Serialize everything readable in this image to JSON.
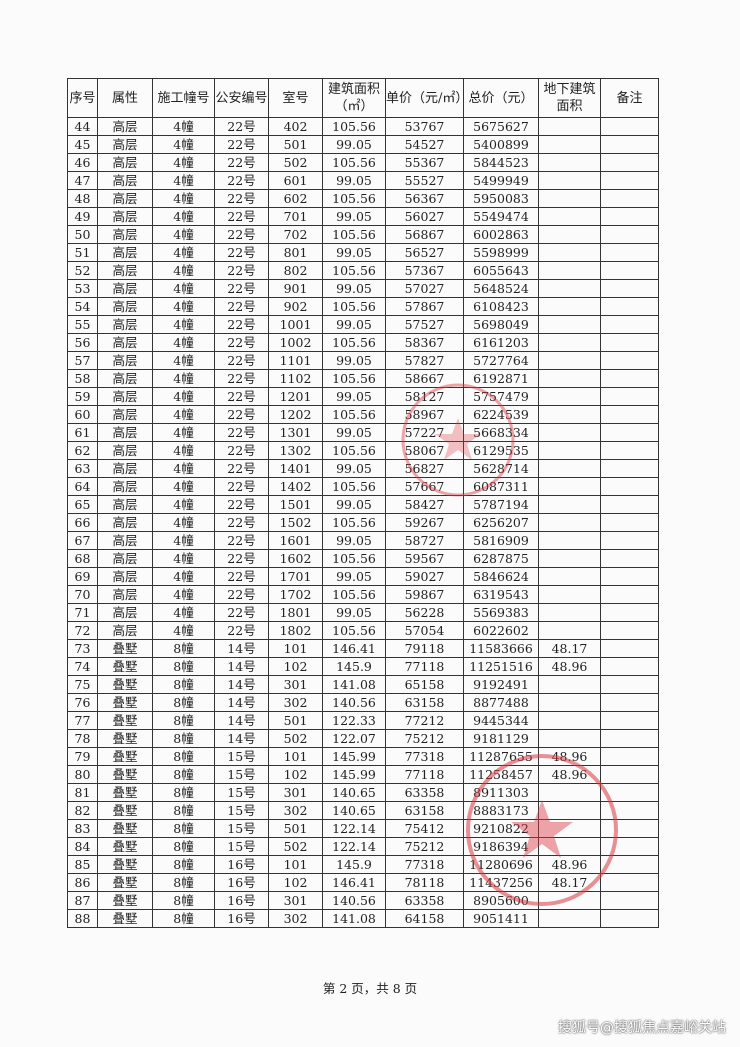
{
  "table": {
    "headers": [
      "序号",
      "属性",
      "施工幢号",
      "公安编号",
      "室号",
      "建筑面积（㎡）",
      "单价（元/㎡）",
      "总价（元）",
      "地下建筑面积",
      "备注"
    ],
    "rows": [
      [
        "44",
        "高层",
        "4幢",
        "22号",
        "402",
        "105.56",
        "53767",
        "5675627",
        "",
        ""
      ],
      [
        "45",
        "高层",
        "4幢",
        "22号",
        "501",
        "99.05",
        "54527",
        "5400899",
        "",
        ""
      ],
      [
        "46",
        "高层",
        "4幢",
        "22号",
        "502",
        "105.56",
        "55367",
        "5844523",
        "",
        ""
      ],
      [
        "47",
        "高层",
        "4幢",
        "22号",
        "601",
        "99.05",
        "55527",
        "5499949",
        "",
        ""
      ],
      [
        "48",
        "高层",
        "4幢",
        "22号",
        "602",
        "105.56",
        "56367",
        "5950083",
        "",
        ""
      ],
      [
        "49",
        "高层",
        "4幢",
        "22号",
        "701",
        "99.05",
        "56027",
        "5549474",
        "",
        ""
      ],
      [
        "50",
        "高层",
        "4幢",
        "22号",
        "702",
        "105.56",
        "56867",
        "6002863",
        "",
        ""
      ],
      [
        "51",
        "高层",
        "4幢",
        "22号",
        "801",
        "99.05",
        "56527",
        "5598999",
        "",
        ""
      ],
      [
        "52",
        "高层",
        "4幢",
        "22号",
        "802",
        "105.56",
        "57367",
        "6055643",
        "",
        ""
      ],
      [
        "53",
        "高层",
        "4幢",
        "22号",
        "901",
        "99.05",
        "57027",
        "5648524",
        "",
        ""
      ],
      [
        "54",
        "高层",
        "4幢",
        "22号",
        "902",
        "105.56",
        "57867",
        "6108423",
        "",
        ""
      ],
      [
        "55",
        "高层",
        "4幢",
        "22号",
        "1001",
        "99.05",
        "57527",
        "5698049",
        "",
        ""
      ],
      [
        "56",
        "高层",
        "4幢",
        "22号",
        "1002",
        "105.56",
        "58367",
        "6161203",
        "",
        ""
      ],
      [
        "57",
        "高层",
        "4幢",
        "22号",
        "1101",
        "99.05",
        "57827",
        "5727764",
        "",
        ""
      ],
      [
        "58",
        "高层",
        "4幢",
        "22号",
        "1102",
        "105.56",
        "58667",
        "6192871",
        "",
        ""
      ],
      [
        "59",
        "高层",
        "4幢",
        "22号",
        "1201",
        "99.05",
        "58127",
        "5757479",
        "",
        ""
      ],
      [
        "60",
        "高层",
        "4幢",
        "22号",
        "1202",
        "105.56",
        "58967",
        "6224539",
        "",
        ""
      ],
      [
        "61",
        "高层",
        "4幢",
        "22号",
        "1301",
        "99.05",
        "57227",
        "5668334",
        "",
        ""
      ],
      [
        "62",
        "高层",
        "4幢",
        "22号",
        "1302",
        "105.56",
        "58067",
        "6129535",
        "",
        ""
      ],
      [
        "63",
        "高层",
        "4幢",
        "22号",
        "1401",
        "99.05",
        "56827",
        "5628714",
        "",
        ""
      ],
      [
        "64",
        "高层",
        "4幢",
        "22号",
        "1402",
        "105.56",
        "57667",
        "6087311",
        "",
        ""
      ],
      [
        "65",
        "高层",
        "4幢",
        "22号",
        "1501",
        "99.05",
        "58427",
        "5787194",
        "",
        ""
      ],
      [
        "66",
        "高层",
        "4幢",
        "22号",
        "1502",
        "105.56",
        "59267",
        "6256207",
        "",
        ""
      ],
      [
        "67",
        "高层",
        "4幢",
        "22号",
        "1601",
        "99.05",
        "58727",
        "5816909",
        "",
        ""
      ],
      [
        "68",
        "高层",
        "4幢",
        "22号",
        "1602",
        "105.56",
        "59567",
        "6287875",
        "",
        ""
      ],
      [
        "69",
        "高层",
        "4幢",
        "22号",
        "1701",
        "99.05",
        "59027",
        "5846624",
        "",
        ""
      ],
      [
        "70",
        "高层",
        "4幢",
        "22号",
        "1702",
        "105.56",
        "59867",
        "6319543",
        "",
        ""
      ],
      [
        "71",
        "高层",
        "4幢",
        "22号",
        "1801",
        "99.05",
        "56228",
        "5569383",
        "",
        ""
      ],
      [
        "72",
        "高层",
        "4幢",
        "22号",
        "1802",
        "105.56",
        "57054",
        "6022602",
        "",
        ""
      ],
      [
        "73",
        "叠墅",
        "8幢",
        "14号",
        "101",
        "146.41",
        "79118",
        "11583666",
        "48.17",
        ""
      ],
      [
        "74",
        "叠墅",
        "8幢",
        "14号",
        "102",
        "145.9",
        "77118",
        "11251516",
        "48.96",
        ""
      ],
      [
        "75",
        "叠墅",
        "8幢",
        "14号",
        "301",
        "141.08",
        "65158",
        "9192491",
        "",
        ""
      ],
      [
        "76",
        "叠墅",
        "8幢",
        "14号",
        "302",
        "140.56",
        "63158",
        "8877488",
        "",
        ""
      ],
      [
        "77",
        "叠墅",
        "8幢",
        "14号",
        "501",
        "122.33",
        "77212",
        "9445344",
        "",
        ""
      ],
      [
        "78",
        "叠墅",
        "8幢",
        "14号",
        "502",
        "122.07",
        "75212",
        "9181129",
        "",
        ""
      ],
      [
        "79",
        "叠墅",
        "8幢",
        "15号",
        "101",
        "145.99",
        "77318",
        "11287655",
        "48.96",
        ""
      ],
      [
        "80",
        "叠墅",
        "8幢",
        "15号",
        "102",
        "145.99",
        "77118",
        "11258457",
        "48.96",
        ""
      ],
      [
        "81",
        "叠墅",
        "8幢",
        "15号",
        "301",
        "140.65",
        "63358",
        "8911303",
        "",
        ""
      ],
      [
        "82",
        "叠墅",
        "8幢",
        "15号",
        "302",
        "140.65",
        "63158",
        "8883173",
        "",
        ""
      ],
      [
        "83",
        "叠墅",
        "8幢",
        "15号",
        "501",
        "122.14",
        "75412",
        "9210822",
        "",
        ""
      ],
      [
        "84",
        "叠墅",
        "8幢",
        "15号",
        "502",
        "122.14",
        "75212",
        "9186394",
        "",
        ""
      ],
      [
        "85",
        "叠墅",
        "8幢",
        "16号",
        "101",
        "145.9",
        "77318",
        "11280696",
        "48.96",
        ""
      ],
      [
        "86",
        "叠墅",
        "8幢",
        "16号",
        "102",
        "146.41",
        "78118",
        "11437256",
        "48.17",
        ""
      ],
      [
        "87",
        "叠墅",
        "8幢",
        "16号",
        "301",
        "140.56",
        "63358",
        "8905600",
        "",
        ""
      ],
      [
        "88",
        "叠墅",
        "8幢",
        "16号",
        "302",
        "141.08",
        "64158",
        "9051411",
        "",
        ""
      ]
    ]
  },
  "footer": {
    "page_text": "第 2 页，共 8 页"
  },
  "watermark": {
    "text": "搜狐号@搜狐焦点嘉峪关站"
  },
  "colors": {
    "stamp": "#d9363e"
  }
}
